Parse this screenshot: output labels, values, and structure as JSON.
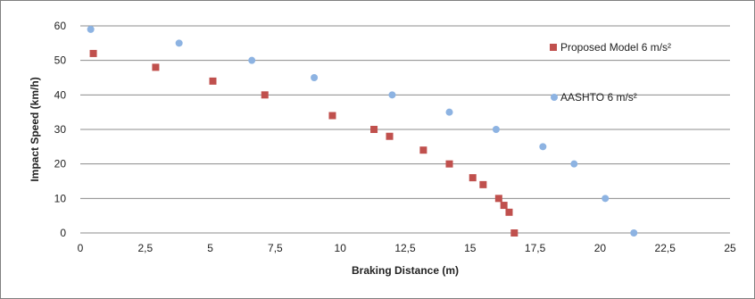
{
  "chart_data": {
    "type": "scatter",
    "xlabel": "Braking Distance (m)",
    "ylabel": "Impact Speed (km/h)",
    "xlim": [
      0,
      25
    ],
    "ylim": [
      0,
      60
    ],
    "x_ticks": [
      "0",
      "2,5",
      "5",
      "7,5",
      "10",
      "12,5",
      "15",
      "17,5",
      "20",
      "22,5",
      "25"
    ],
    "y_ticks": [
      "0",
      "10",
      "20",
      "30",
      "40",
      "50",
      "60"
    ],
    "grid": "horizontal",
    "legend_position": "right",
    "series": [
      {
        "name": "Proposed Model 6 m/s²",
        "marker": "square",
        "color": "#c0504d",
        "points": [
          {
            "x": 0.5,
            "y": 52
          },
          {
            "x": 2.9,
            "y": 48
          },
          {
            "x": 5.1,
            "y": 44
          },
          {
            "x": 7.1,
            "y": 40
          },
          {
            "x": 9.7,
            "y": 34
          },
          {
            "x": 11.3,
            "y": 30
          },
          {
            "x": 11.9,
            "y": 28
          },
          {
            "x": 13.2,
            "y": 24
          },
          {
            "x": 14.2,
            "y": 20
          },
          {
            "x": 15.1,
            "y": 16
          },
          {
            "x": 15.5,
            "y": 14
          },
          {
            "x": 16.1,
            "y": 10
          },
          {
            "x": 16.3,
            "y": 8
          },
          {
            "x": 16.5,
            "y": 6
          },
          {
            "x": 16.7,
            "y": 0
          }
        ]
      },
      {
        "name": "AASHTO 6 m/s²",
        "marker": "circle",
        "color": "#8db3e2",
        "points": [
          {
            "x": 0.4,
            "y": 59
          },
          {
            "x": 3.8,
            "y": 55
          },
          {
            "x": 6.6,
            "y": 50
          },
          {
            "x": 9.0,
            "y": 45
          },
          {
            "x": 12.0,
            "y": 40
          },
          {
            "x": 14.2,
            "y": 35
          },
          {
            "x": 16.0,
            "y": 30
          },
          {
            "x": 17.8,
            "y": 25
          },
          {
            "x": 19.0,
            "y": 20
          },
          {
            "x": 20.2,
            "y": 10
          },
          {
            "x": 21.3,
            "y": 0
          }
        ]
      }
    ]
  }
}
